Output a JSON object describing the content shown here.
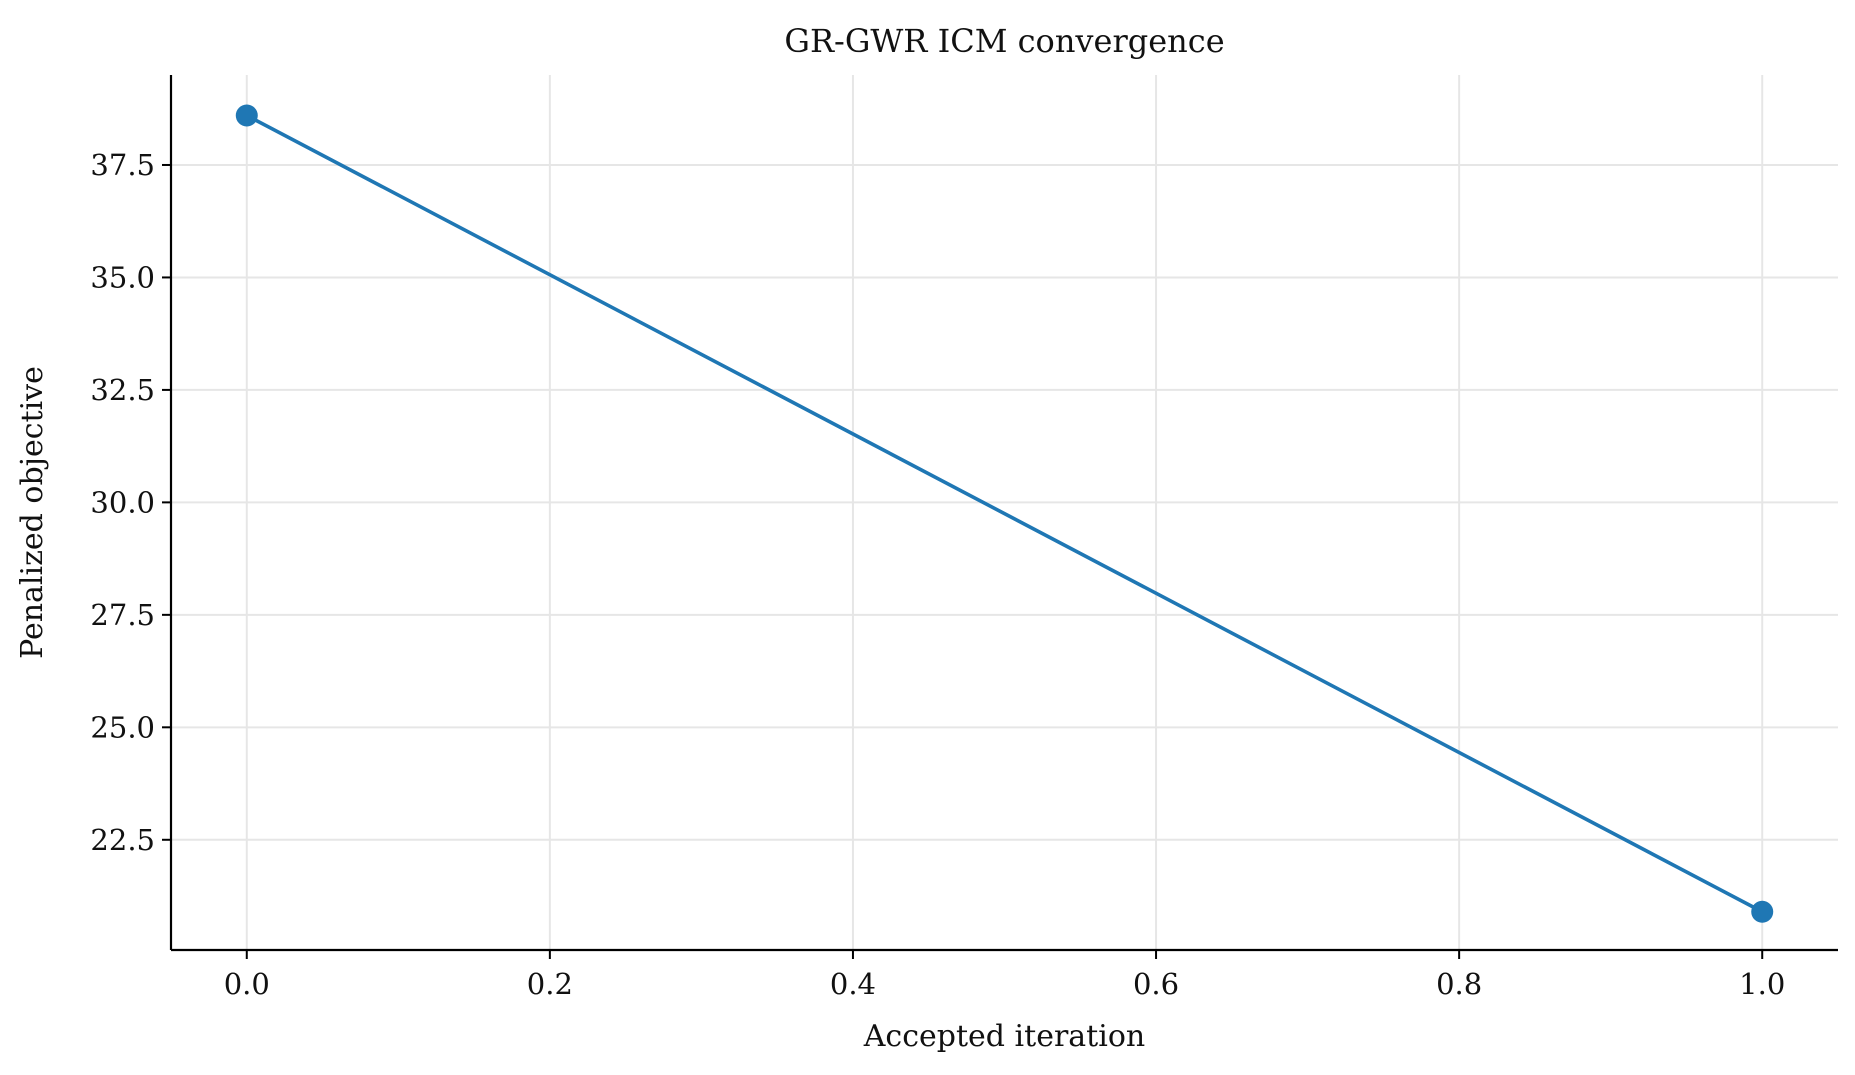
{
  "chart_data": {
    "type": "line",
    "title": "GR-GWR ICM convergence",
    "xlabel": "Accepted iteration",
    "ylabel": "Penalized objective",
    "x": [
      0.0,
      1.0
    ],
    "series": [
      {
        "values": [
          38.6,
          20.9
        ],
        "color": "#1f77b4",
        "marker": "circle"
      }
    ],
    "xlim": [
      -0.05,
      1.05
    ],
    "ylim": [
      20.05,
      39.5
    ],
    "xticks": [
      0.0,
      0.2,
      0.4,
      0.6,
      0.8,
      1.0
    ],
    "xtick_labels": [
      "0.0",
      "0.2",
      "0.4",
      "0.6",
      "0.8",
      "1.0"
    ],
    "yticks": [
      22.5,
      25.0,
      27.5,
      30.0,
      32.5,
      35.0,
      37.5
    ],
    "ytick_labels": [
      "22.5",
      "25.0",
      "27.5",
      "30.0",
      "32.5",
      "35.0",
      "37.5"
    ],
    "grid": true,
    "legend": "none",
    "spines": [
      "left",
      "bottom"
    ]
  }
}
